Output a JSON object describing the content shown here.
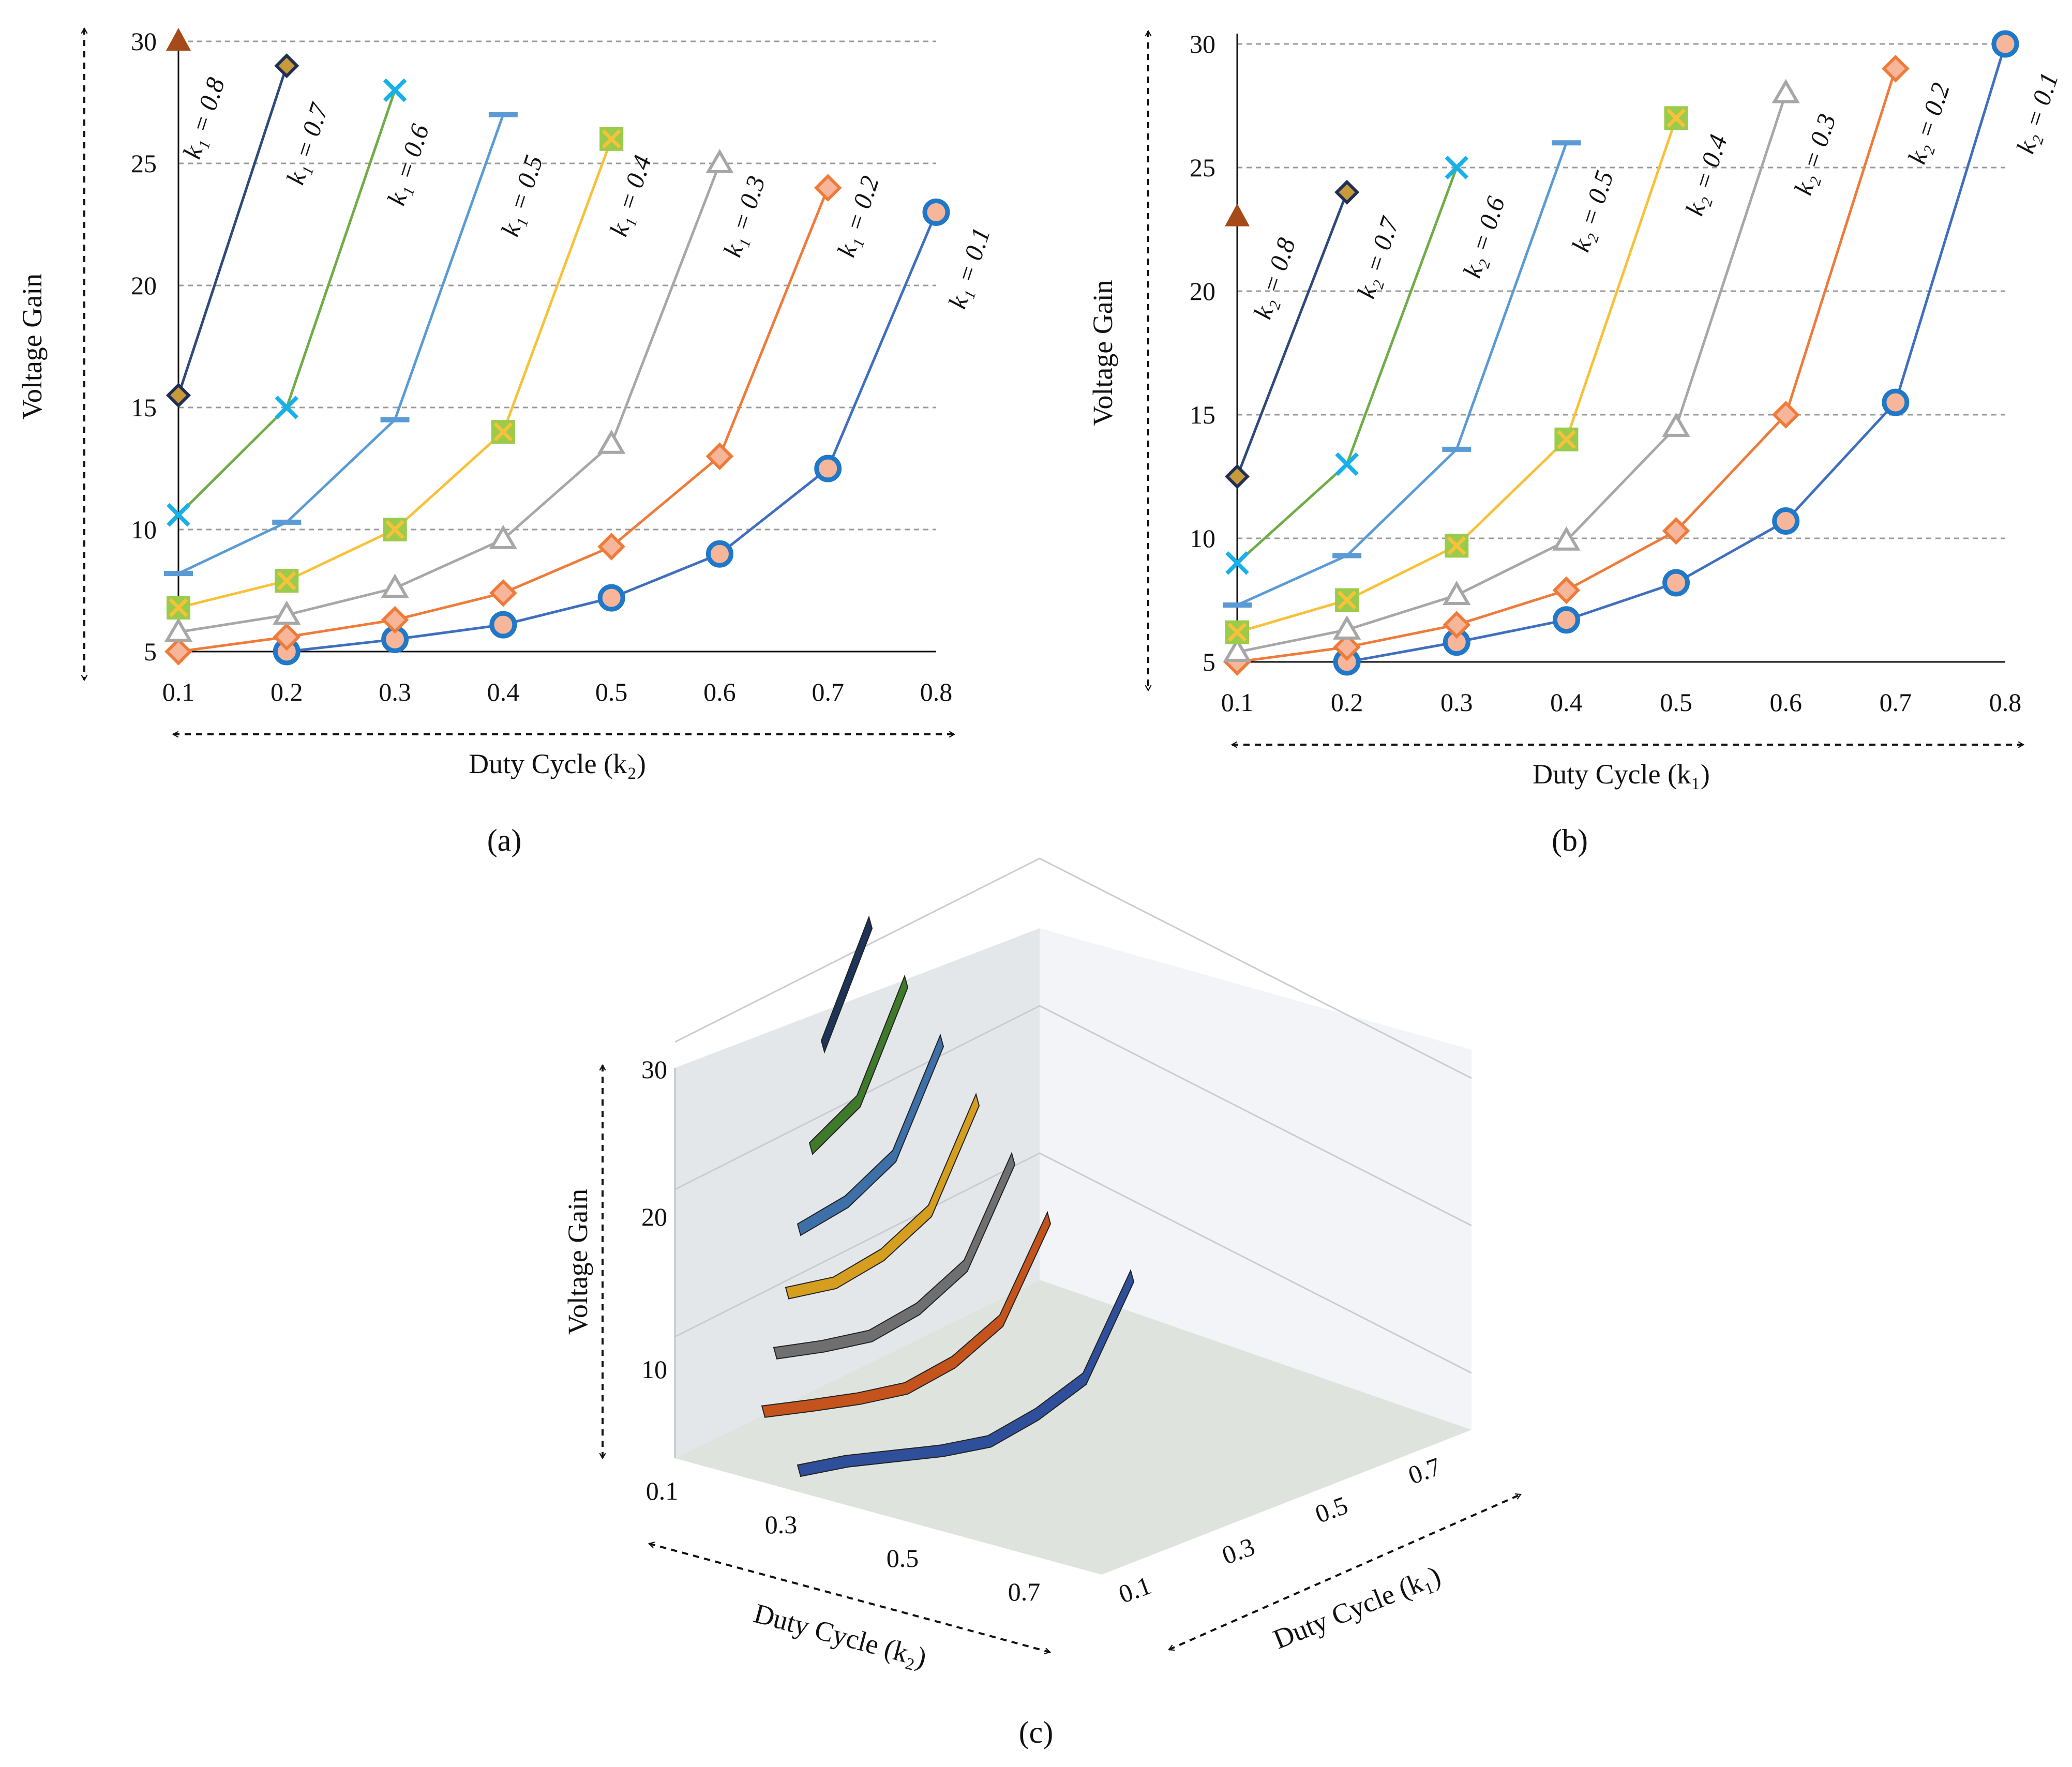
{
  "colors": {
    "k_0.1": "#3f6fbe",
    "k_0.2": "#ef7b3a",
    "k_0.3": "#a7a7a7",
    "k_0.4": "#f7c23a",
    "k_0.5": "#5b9bd5",
    "k_0.6": "#70ad47",
    "k_0.7": "#2e4a7a",
    "k_0.8": "#a64a1a"
  },
  "chart_data": [
    {
      "panel": "a",
      "caption": "(a)",
      "type": "line",
      "xlabel": "Duty Cycle (k₂)",
      "ylabel": "Voltage Gain",
      "xlim": [
        0.1,
        0.8
      ],
      "ylim": [
        5,
        30
      ],
      "x_ticks": [
        "0.1",
        "0.2",
        "0.3",
        "0.4",
        "0.5",
        "0.6",
        "0.7",
        "0.8"
      ],
      "y_ticks": [
        "5",
        "10",
        "15",
        "20",
        "25",
        "30"
      ],
      "grid": "horizontal dashed",
      "series": [
        {
          "name": "k₁ = 0.1",
          "marker": "circle",
          "x": [
            0.2,
            0.3,
            0.4,
            0.5,
            0.6,
            0.7,
            0.8
          ],
          "y": [
            5.0,
            5.5,
            6.1,
            7.2,
            9.0,
            12.5,
            23.0
          ]
        },
        {
          "name": "k₁ = 0.2",
          "marker": "diamond",
          "x": [
            0.1,
            0.2,
            0.3,
            0.4,
            0.5,
            0.6,
            0.7
          ],
          "y": [
            5.0,
            5.6,
            6.3,
            7.4,
            9.3,
            13.0,
            24.0
          ]
        },
        {
          "name": "k₁ = 0.3",
          "marker": "triangle-open",
          "x": [
            0.1,
            0.2,
            0.3,
            0.4,
            0.5,
            0.6
          ],
          "y": [
            5.8,
            6.5,
            7.6,
            9.6,
            13.5,
            25.0
          ]
        },
        {
          "name": "k₁ = 0.4",
          "marker": "square-x",
          "x": [
            0.1,
            0.2,
            0.3,
            0.4,
            0.5
          ],
          "y": [
            6.8,
            7.9,
            10.0,
            14.0,
            26.0
          ]
        },
        {
          "name": "k₁ = 0.5",
          "marker": "dash",
          "x": [
            0.1,
            0.2,
            0.3,
            0.4
          ],
          "y": [
            8.2,
            10.3,
            14.5,
            27.0
          ]
        },
        {
          "name": "k₁ = 0.6",
          "marker": "x",
          "x": [
            0.1,
            0.2,
            0.3
          ],
          "y": [
            10.6,
            15.0,
            28.0
          ]
        },
        {
          "name": "k₁ = 0.7",
          "marker": "diamond-dark",
          "x": [
            0.1,
            0.2
          ],
          "y": [
            15.5,
            29.0
          ]
        },
        {
          "name": "k₁ = 0.8",
          "marker": "triangle-filled",
          "x": [
            0.1
          ],
          "y": [
            30.0
          ]
        }
      ]
    },
    {
      "panel": "b",
      "caption": "(b)",
      "type": "line",
      "xlabel": "Duty Cycle (k₁)",
      "ylabel": "Voltage Gain",
      "xlim": [
        0.1,
        0.8
      ],
      "ylim": [
        5,
        30
      ],
      "x_ticks": [
        "0.1",
        "0.2",
        "0.3",
        "0.4",
        "0.5",
        "0.6",
        "0.7",
        "0.8"
      ],
      "y_ticks": [
        "5",
        "10",
        "15",
        "20",
        "25",
        "30"
      ],
      "grid": "horizontal dashed",
      "series": [
        {
          "name": "k₂ = 0.1",
          "marker": "circle",
          "x": [
            0.2,
            0.3,
            0.4,
            0.5,
            0.6,
            0.7,
            0.8
          ],
          "y": [
            5.0,
            5.8,
            6.7,
            8.2,
            10.7,
            15.5,
            30.0
          ]
        },
        {
          "name": "k₂ = 0.2",
          "marker": "diamond",
          "x": [
            0.1,
            0.2,
            0.3,
            0.4,
            0.5,
            0.6,
            0.7
          ],
          "y": [
            5.0,
            5.6,
            6.5,
            7.9,
            10.3,
            15.0,
            29.0
          ]
        },
        {
          "name": "k₂ = 0.3",
          "marker": "triangle-open",
          "x": [
            0.1,
            0.2,
            0.3,
            0.4,
            0.5,
            0.6
          ],
          "y": [
            5.4,
            6.3,
            7.7,
            9.9,
            14.5,
            28.0
          ]
        },
        {
          "name": "k₂ = 0.4",
          "marker": "square-x",
          "x": [
            0.1,
            0.2,
            0.3,
            0.4,
            0.5
          ],
          "y": [
            6.2,
            7.5,
            9.7,
            14.0,
            27.0
          ]
        },
        {
          "name": "k₂ = 0.5",
          "marker": "dash",
          "x": [
            0.1,
            0.2,
            0.3,
            0.4
          ],
          "y": [
            7.3,
            9.3,
            13.6,
            26.0
          ]
        },
        {
          "name": "k₂ = 0.6",
          "marker": "x",
          "x": [
            0.1,
            0.2,
            0.3
          ],
          "y": [
            9.0,
            13.0,
            25.0
          ]
        },
        {
          "name": "k₂ = 0.7",
          "marker": "diamond-dark",
          "x": [
            0.1,
            0.2
          ],
          "y": [
            12.5,
            24.0
          ]
        },
        {
          "name": "k₂ = 0.8",
          "marker": "triangle-filled",
          "x": [
            0.1
          ],
          "y": [
            23.0
          ]
        }
      ]
    },
    {
      "panel": "c",
      "caption": "(c)",
      "type": "surface-3d-ribbons",
      "zlabel": "Voltage Gain",
      "xlabel": "Duty Cycle (k₂)",
      "ylabel": "Duty Cycle (k₁)",
      "z_ticks": [
        "10",
        "20",
        "30"
      ],
      "x_ticks": [
        "0.1",
        "0.3",
        "0.5",
        "0.7"
      ],
      "y_ticks": [
        "0.1",
        "0.3",
        "0.5",
        "0.7"
      ],
      "ribbons": [
        {
          "color": "#2f4f9a",
          "z": [
            4,
            5,
            5.5,
            6,
            7,
            9,
            12,
            23
          ]
        },
        {
          "color": "#c4531c",
          "z": [
            5,
            5.6,
            6.3,
            7.4,
            9.3,
            13,
            24
          ]
        },
        {
          "color": "#6f6f6f",
          "z": [
            5.8,
            6.5,
            7.6,
            9.6,
            13.5,
            25
          ]
        },
        {
          "color": "#d59e1e",
          "z": [
            6.8,
            7.9,
            10,
            14,
            26
          ]
        },
        {
          "color": "#3d6fa8",
          "z": [
            8.2,
            10.3,
            14.5,
            27
          ]
        },
        {
          "color": "#3f7a2a",
          "z": [
            10.6,
            15,
            28
          ]
        },
        {
          "color": "#1d3358",
          "z": [
            15.5,
            29
          ]
        }
      ]
    }
  ]
}
